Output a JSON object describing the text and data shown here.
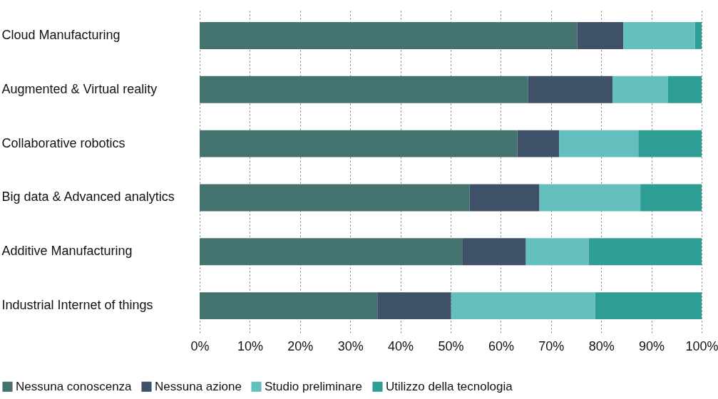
{
  "chart_data": {
    "type": "bar",
    "orientation": "horizontal",
    "stacked": true,
    "categories": [
      "Cloud Manufacturing",
      "Augmented & Virtual reality",
      "Collaborative robotics",
      "Big data & Advanced analytics",
      "Additive Manufacturing",
      "Industrial Internet of things"
    ],
    "series": [
      {
        "name": "Nessuna conoscenza",
        "color": "#44736f",
        "values": [
          75.2,
          65.4,
          63.3,
          53.8,
          52.3,
          35.4
        ]
      },
      {
        "name": "Nessuna azione",
        "color": "#3f5168",
        "values": [
          9.2,
          16.9,
          8.3,
          13.9,
          12.7,
          14.7
        ]
      },
      {
        "name": "Studio preliminare",
        "color": "#65bfbf",
        "values": [
          14.3,
          11.0,
          15.8,
          20.1,
          12.5,
          28.7
        ]
      },
      {
        "name": "Utilizzo della tecnologia",
        "color": "#2e9e94",
        "values": [
          1.3,
          6.7,
          12.6,
          12.2,
          22.5,
          21.2
        ]
      }
    ],
    "xlim": [
      0,
      100
    ],
    "xticks": [
      {
        "value": 0,
        "label": "0%"
      },
      {
        "value": 10,
        "label": "10%"
      },
      {
        "value": 20,
        "label": "20%"
      },
      {
        "value": 30,
        "label": "30%"
      },
      {
        "value": 40,
        "label": "40%"
      },
      {
        "value": 50,
        "label": "50%"
      },
      {
        "value": 60,
        "label": "60%"
      },
      {
        "value": 70,
        "label": "70%"
      },
      {
        "value": 80,
        "label": "80%"
      },
      {
        "value": 90,
        "label": "90%"
      },
      {
        "value": 100,
        "label": "100%"
      }
    ],
    "grid": "x",
    "legend": "bottom left"
  }
}
